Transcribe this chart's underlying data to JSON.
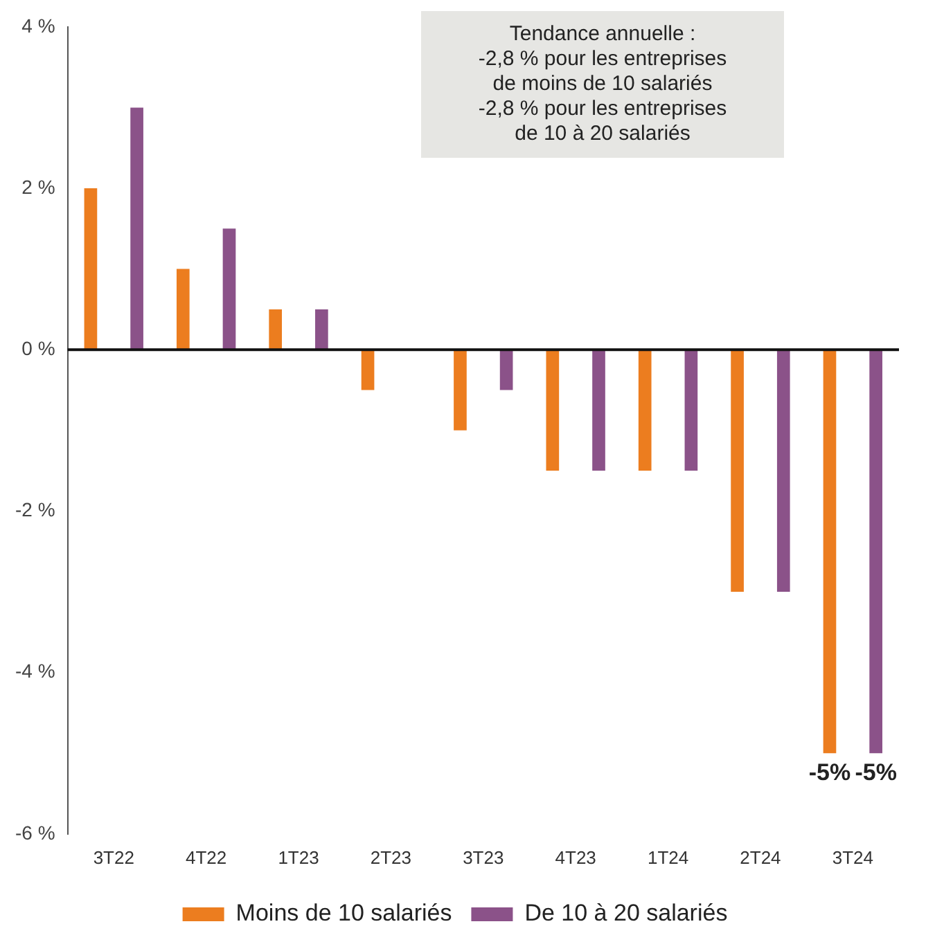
{
  "chart_data": {
    "type": "bar",
    "categories": [
      "3T22",
      "4T22",
      "1T23",
      "2T23",
      "3T23",
      "4T23",
      "1T24",
      "2T24",
      "3T24"
    ],
    "series": [
      {
        "name": "Moins de 10 salariés",
        "color": "#ec7d1f",
        "values": [
          2,
          1,
          0.5,
          -0.5,
          -1,
          -1.5,
          -1.5,
          -3,
          -5
        ],
        "value_labels": [
          null,
          null,
          null,
          null,
          null,
          null,
          null,
          null,
          "-5%"
        ]
      },
      {
        "name": "De 10 à 20 salariés",
        "color": "#8b5289",
        "values": [
          3,
          1.5,
          0.5,
          0,
          -0.5,
          -1.5,
          -1.5,
          -3,
          -5
        ],
        "value_labels": [
          null,
          null,
          null,
          null,
          null,
          null,
          null,
          null,
          "-5%"
        ]
      }
    ],
    "ylim": [
      -6,
      4
    ],
    "yticks": [
      {
        "value": -6,
        "label": "-6 %"
      },
      {
        "value": -4,
        "label": "-4 %"
      },
      {
        "value": -2,
        "label": "-2 %"
      },
      {
        "value": 0,
        "label": "0 %"
      },
      {
        "value": 2,
        "label": "2 %"
      },
      {
        "value": 4,
        "label": "4 %"
      }
    ],
    "grid": false,
    "legend": "bottom",
    "ref_lines": [
      {
        "axis": "y",
        "value": 0,
        "color": "#111111"
      }
    ],
    "annotations": [
      "Tendance annuelle :\n-2,8 % pour les entreprises\nde moins de 10 salariés\n-2,8 % pour les entreprises\nde 10 à 20 salariés"
    ]
  }
}
